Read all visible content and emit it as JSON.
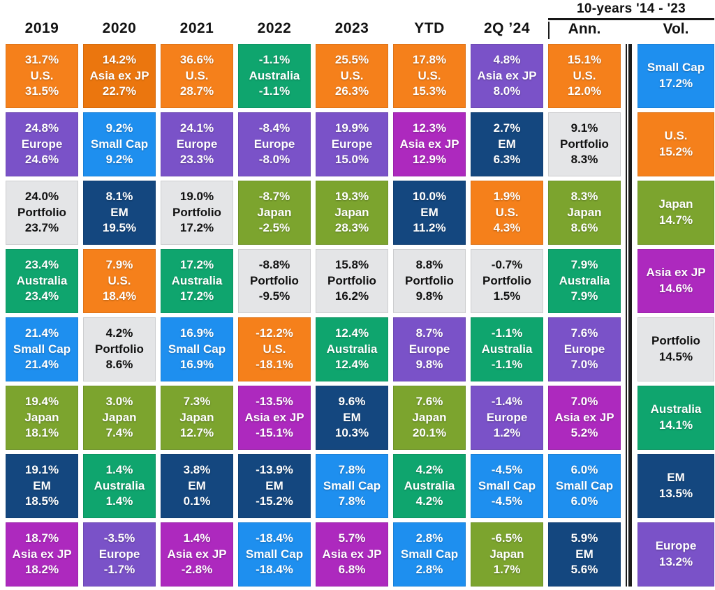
{
  "palette": {
    "us": {
      "bg": "#F5801B",
      "text": "#FFFFFF"
    },
    "asia": {
      "bg": "#AD29BE",
      "text": "#FFFFFF"
    },
    "asia_orange": {
      "bg": "#EB760E",
      "text": "#FFFFFF"
    },
    "europe": {
      "bg": "#7A52C8",
      "text": "#FFFFFF"
    },
    "portfolio": {
      "bg": "#E4E5E7",
      "text": "#111111"
    },
    "australia": {
      "bg": "#0FA56E",
      "text": "#FFFFFF"
    },
    "smallcap": {
      "bg": "#1E8FEF",
      "text": "#FFFFFF"
    },
    "japan": {
      "bg": "#7CA42E",
      "text": "#FFFFFF"
    },
    "em": {
      "bg": "#14477F",
      "text": "#FFFFFF"
    }
  },
  "chart_data": {
    "type": "table",
    "description_layout": "asset-class returns quilt; first 8 columns show top %, asset name, bottom %; Vol column shows asset name and volatility %",
    "group_header": {
      "label": "10-years '14 - '23"
    },
    "columns": [
      {
        "label": "2019",
        "cells": [
          {
            "top": "31.7%",
            "name": "U.S.",
            "bottom": "31.5%",
            "color": "us"
          },
          {
            "top": "24.8%",
            "name": "Europe",
            "bottom": "24.6%",
            "color": "europe"
          },
          {
            "top": "24.0%",
            "name": "Portfolio",
            "bottom": "23.7%",
            "color": "portfolio"
          },
          {
            "top": "23.4%",
            "name": "Australia",
            "bottom": "23.4%",
            "color": "australia"
          },
          {
            "top": "21.4%",
            "name": "Small Cap",
            "bottom": "21.4%",
            "color": "smallcap"
          },
          {
            "top": "19.4%",
            "name": "Japan",
            "bottom": "18.1%",
            "color": "japan"
          },
          {
            "top": "19.1%",
            "name": "EM",
            "bottom": "18.5%",
            "color": "em"
          },
          {
            "top": "18.7%",
            "name": "Asia ex JP",
            "bottom": "18.2%",
            "color": "asia"
          }
        ]
      },
      {
        "label": "2020",
        "cells": [
          {
            "top": "14.2%",
            "name": "Asia ex JP",
            "bottom": "22.7%",
            "color": "asia_orange"
          },
          {
            "top": "9.2%",
            "name": "Small Cap",
            "bottom": "9.2%",
            "color": "smallcap"
          },
          {
            "top": "8.1%",
            "name": "EM",
            "bottom": "19.5%",
            "color": "em"
          },
          {
            "top": "7.9%",
            "name": "U.S.",
            "bottom": "18.4%",
            "color": "us"
          },
          {
            "top": "4.2%",
            "name": "Portfolio",
            "bottom": "8.6%",
            "color": "portfolio"
          },
          {
            "top": "3.0%",
            "name": "Japan",
            "bottom": "7.4%",
            "color": "japan"
          },
          {
            "top": "1.4%",
            "name": "Australia",
            "bottom": "1.4%",
            "color": "australia"
          },
          {
            "top": "-3.5%",
            "name": "Europe",
            "bottom": "-1.7%",
            "color": "europe"
          }
        ]
      },
      {
        "label": "2021",
        "cells": [
          {
            "top": "36.6%",
            "name": "U.S.",
            "bottom": "28.7%",
            "color": "us"
          },
          {
            "top": "24.1%",
            "name": "Europe",
            "bottom": "23.3%",
            "color": "europe"
          },
          {
            "top": "19.0%",
            "name": "Portfolio",
            "bottom": "17.2%",
            "color": "portfolio"
          },
          {
            "top": "17.2%",
            "name": "Australia",
            "bottom": "17.2%",
            "color": "australia"
          },
          {
            "top": "16.9%",
            "name": "Small Cap",
            "bottom": "16.9%",
            "color": "smallcap"
          },
          {
            "top": "7.3%",
            "name": "Japan",
            "bottom": "12.7%",
            "color": "japan"
          },
          {
            "top": "3.8%",
            "name": "EM",
            "bottom": "0.1%",
            "color": "em"
          },
          {
            "top": "1.4%",
            "name": "Asia ex JP",
            "bottom": "-2.8%",
            "color": "asia"
          }
        ]
      },
      {
        "label": "2022",
        "cells": [
          {
            "top": "-1.1%",
            "name": "Australia",
            "bottom": "-1.1%",
            "color": "australia"
          },
          {
            "top": "-8.4%",
            "name": "Europe",
            "bottom": "-8.0%",
            "color": "europe"
          },
          {
            "top": "-8.7%",
            "name": "Japan",
            "bottom": "-2.5%",
            "color": "japan"
          },
          {
            "top": "-8.8%",
            "name": "Portfolio",
            "bottom": "-9.5%",
            "color": "portfolio"
          },
          {
            "top": "-12.2%",
            "name": "U.S.",
            "bottom": "-18.1%",
            "color": "us"
          },
          {
            "top": "-13.5%",
            "name": "Asia ex JP",
            "bottom": "-15.1%",
            "color": "asia"
          },
          {
            "top": "-13.9%",
            "name": "EM",
            "bottom": "-15.2%",
            "color": "em"
          },
          {
            "top": "-18.4%",
            "name": "Small Cap",
            "bottom": "-18.4%",
            "color": "smallcap"
          }
        ]
      },
      {
        "label": "2023",
        "cells": [
          {
            "top": "25.5%",
            "name": "U.S.",
            "bottom": "26.3%",
            "color": "us"
          },
          {
            "top": "19.9%",
            "name": "Europe",
            "bottom": "15.0%",
            "color": "europe"
          },
          {
            "top": "19.3%",
            "name": "Japan",
            "bottom": "28.3%",
            "color": "japan"
          },
          {
            "top": "15.8%",
            "name": "Portfolio",
            "bottom": "16.2%",
            "color": "portfolio"
          },
          {
            "top": "12.4%",
            "name": "Australia",
            "bottom": "12.4%",
            "color": "australia"
          },
          {
            "top": "9.6%",
            "name": "EM",
            "bottom": "10.3%",
            "color": "em"
          },
          {
            "top": "7.8%",
            "name": "Small Cap",
            "bottom": "7.8%",
            "color": "smallcap"
          },
          {
            "top": "5.7%",
            "name": "Asia ex JP",
            "bottom": "6.8%",
            "color": "asia"
          }
        ]
      },
      {
        "label": "YTD",
        "cells": [
          {
            "top": "17.8%",
            "name": "U.S.",
            "bottom": "15.3%",
            "color": "us"
          },
          {
            "top": "12.3%",
            "name": "Asia ex JP",
            "bottom": "12.9%",
            "color": "asia"
          },
          {
            "top": "10.0%",
            "name": "EM",
            "bottom": "11.2%",
            "color": "em"
          },
          {
            "top": "8.8%",
            "name": "Portfolio",
            "bottom": "9.8%",
            "color": "portfolio"
          },
          {
            "top": "8.7%",
            "name": "Europe",
            "bottom": "9.8%",
            "color": "europe"
          },
          {
            "top": "7.6%",
            "name": "Japan",
            "bottom": "20.1%",
            "color": "japan"
          },
          {
            "top": "4.2%",
            "name": "Australia",
            "bottom": "4.2%",
            "color": "australia"
          },
          {
            "top": "2.8%",
            "name": "Small Cap",
            "bottom": "2.8%",
            "color": "smallcap"
          }
        ]
      },
      {
        "label": "2Q ’24",
        "cells": [
          {
            "top": "4.8%",
            "name": "Asia ex JP",
            "bottom": "8.0%",
            "color": "europe"
          },
          {
            "top": "2.7%",
            "name": "EM",
            "bottom": "6.3%",
            "color": "em"
          },
          {
            "top": "1.9%",
            "name": "U.S.",
            "bottom": "4.3%",
            "color": "us"
          },
          {
            "top": "-0.7%",
            "name": "Portfolio",
            "bottom": "1.5%",
            "color": "portfolio"
          },
          {
            "top": "-1.1%",
            "name": "Australia",
            "bottom": "-1.1%",
            "color": "australia"
          },
          {
            "top": "-1.4%",
            "name": "Europe",
            "bottom": "1.2%",
            "color": "europe"
          },
          {
            "top": "-4.5%",
            "name": "Small Cap",
            "bottom": "-4.5%",
            "color": "smallcap"
          },
          {
            "top": "-6.5%",
            "name": "Japan",
            "bottom": "1.7%",
            "color": "japan"
          }
        ]
      },
      {
        "label": "Ann.",
        "cells": [
          {
            "top": "15.1%",
            "name": "U.S.",
            "bottom": "12.0%",
            "color": "us"
          },
          {
            "top": "9.1%",
            "name": "Portfolio",
            "bottom": "8.3%",
            "color": "portfolio"
          },
          {
            "top": "8.3%",
            "name": "Japan",
            "bottom": "8.6%",
            "color": "japan"
          },
          {
            "top": "7.9%",
            "name": "Australia",
            "bottom": "7.9%",
            "color": "australia"
          },
          {
            "top": "7.6%",
            "name": "Europe",
            "bottom": "7.0%",
            "color": "europe"
          },
          {
            "top": "7.0%",
            "name": "Asia ex JP",
            "bottom": "5.2%",
            "color": "asia"
          },
          {
            "top": "6.0%",
            "name": "Small Cap",
            "bottom": "6.0%",
            "color": "smallcap"
          },
          {
            "top": "5.9%",
            "name": "EM",
            "bottom": "5.6%",
            "color": "em"
          }
        ]
      },
      {
        "label": "Vol.",
        "cells": [
          {
            "name": "Small Cap",
            "value": "17.2%",
            "color": "smallcap"
          },
          {
            "name": "U.S.",
            "value": "15.2%",
            "color": "us"
          },
          {
            "name": "Japan",
            "value": "14.7%",
            "color": "japan"
          },
          {
            "name": "Asia ex JP",
            "value": "14.6%",
            "color": "asia"
          },
          {
            "name": "Portfolio",
            "value": "14.5%",
            "color": "portfolio"
          },
          {
            "name": "Australia",
            "value": "14.1%",
            "color": "australia"
          },
          {
            "name": "EM",
            "value": "13.5%",
            "color": "em"
          },
          {
            "name": "Europe",
            "value": "13.2%",
            "color": "europe"
          }
        ]
      }
    ]
  }
}
